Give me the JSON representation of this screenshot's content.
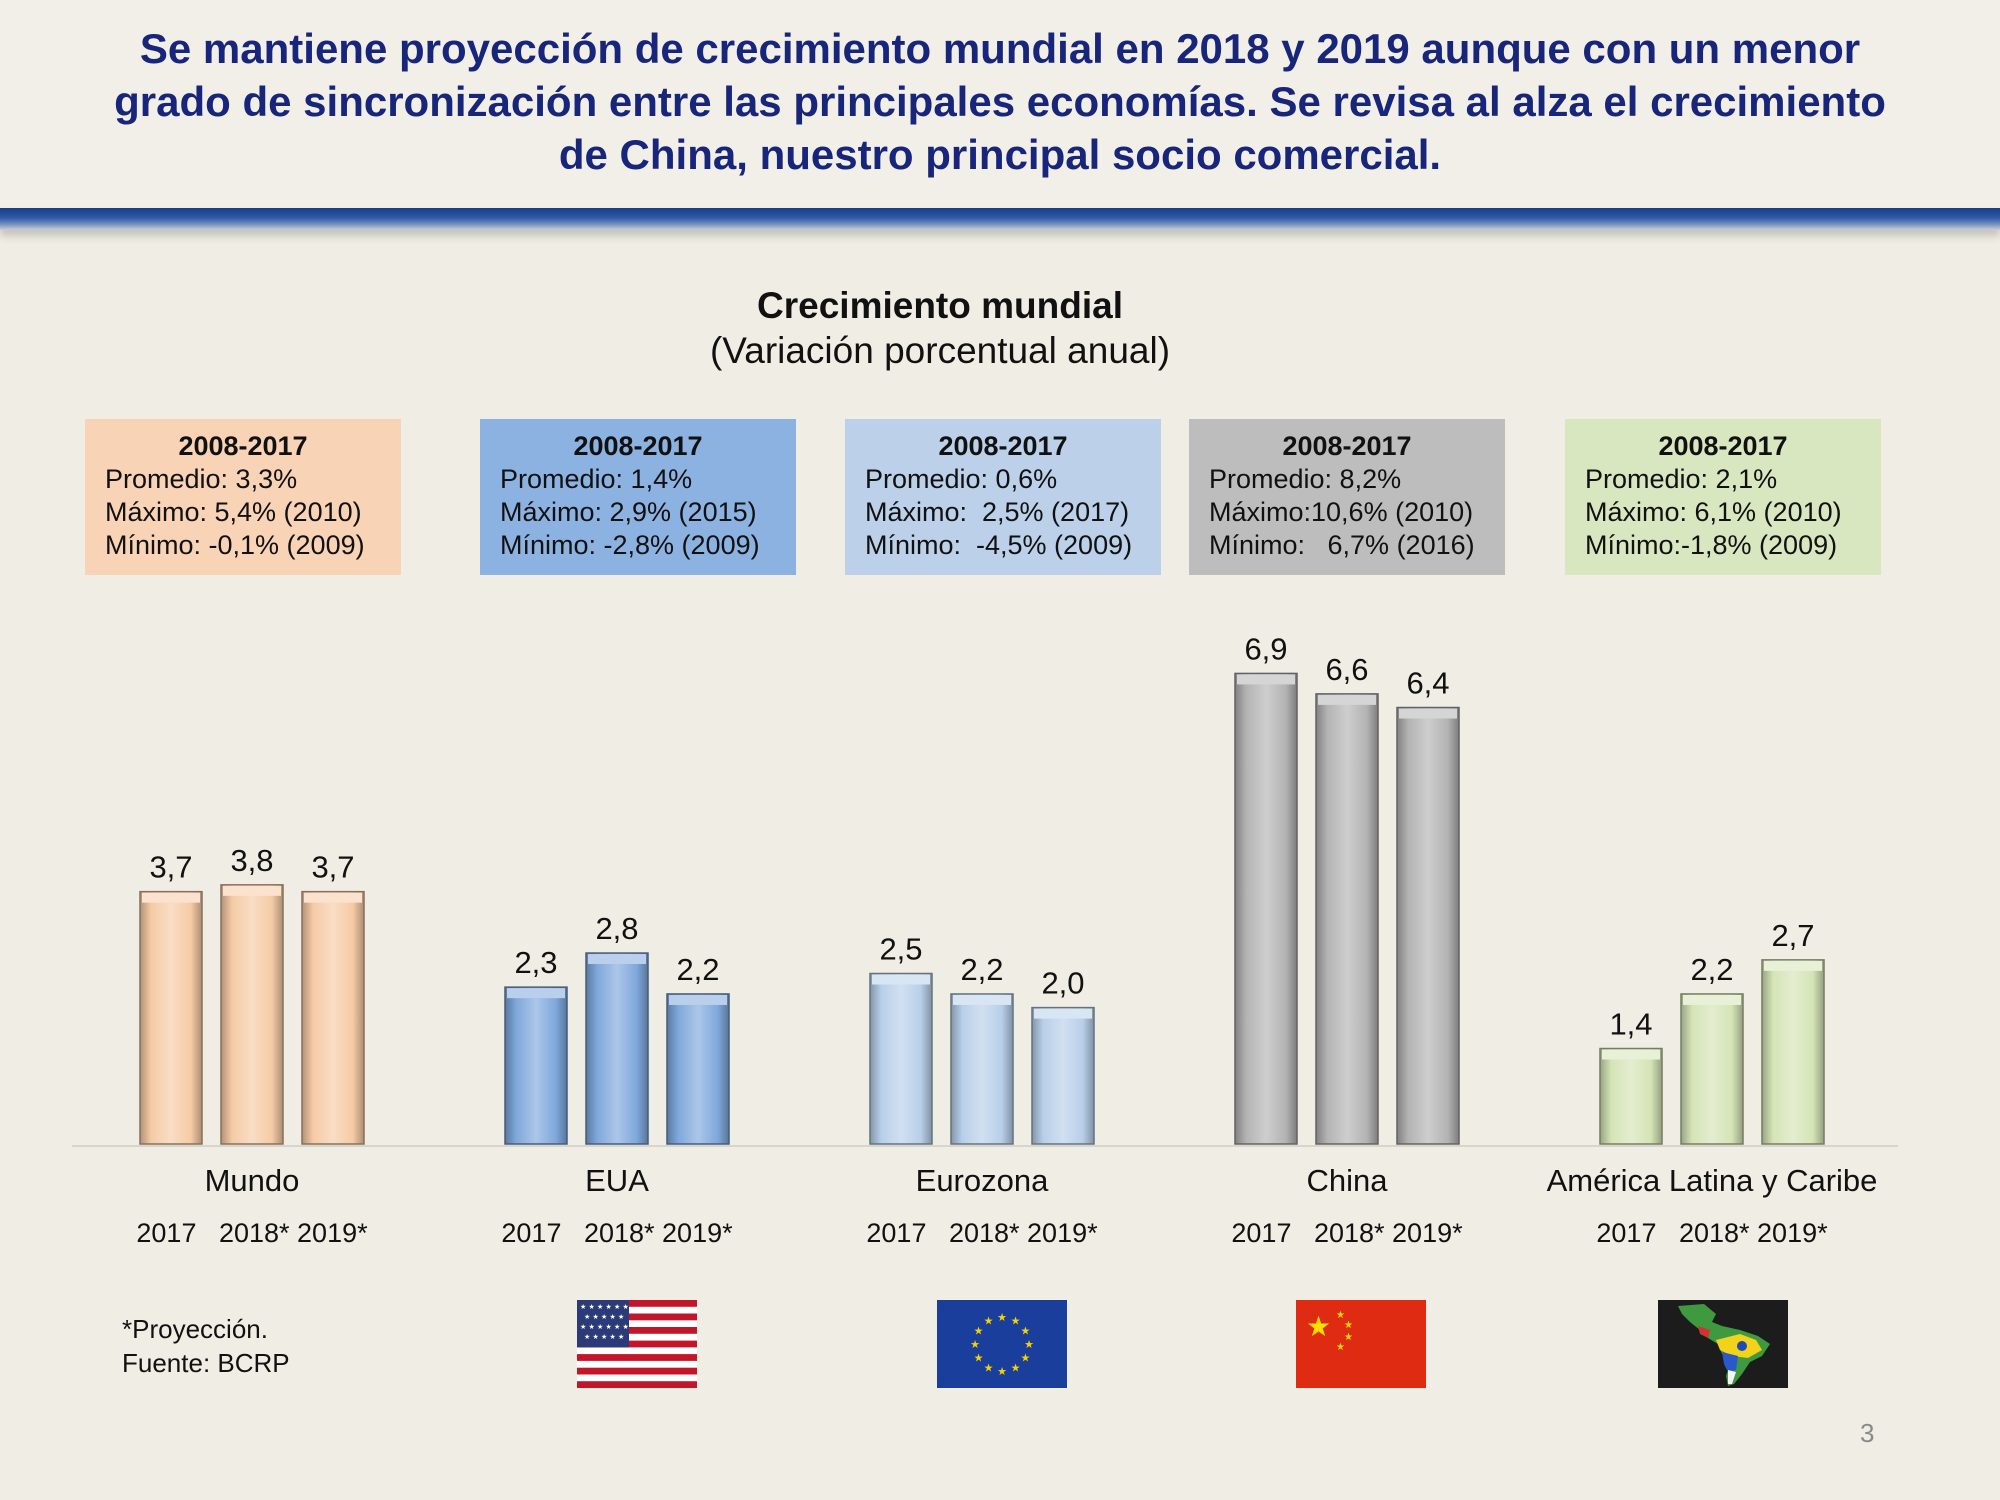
{
  "headline": "Se mantiene proyección de crecimiento mundial en 2018 y 2019 aunque con un menor\ngrado de sincronización entre las principales economías. Se revisa al alza el crecimiento\nde China, nuestro principal socio comercial.",
  "chart_data": {
    "type": "bar",
    "title": "Crecimiento mundial",
    "subtitle": "(Variación porcentual anual)",
    "categories": [
      "Mundo",
      "EUA",
      "Eurozona",
      "China",
      "América Latina y Caribe"
    ],
    "periods": [
      "2017",
      "2018*",
      "2019*"
    ],
    "years_label": "2017   2018* 2019*",
    "values": [
      [
        "3,7",
        "3,8",
        "3,7"
      ],
      [
        "2,3",
        "2,8",
        "2,2"
      ],
      [
        "2,5",
        "2,2",
        "2,0"
      ],
      [
        "6,9",
        "6,6",
        "6,4"
      ],
      [
        "1,4",
        "2,2",
        "2,7"
      ]
    ],
    "numeric_values": [
      [
        3.7,
        3.8,
        3.7
      ],
      [
        2.3,
        2.8,
        2.2
      ],
      [
        2.5,
        2.2,
        2.0
      ],
      [
        6.9,
        6.6,
        6.4
      ],
      [
        1.4,
        2.2,
        2.7
      ]
    ],
    "ylim": [
      0,
      7.5
    ],
    "grid": false,
    "colors": [
      "#f6cba6",
      "#7fa8dc",
      "#b8cfe9",
      "#b3b3b3",
      "#d5e4b6"
    ]
  },
  "stat_boxes": [
    {
      "heading": "2008-2017",
      "lines": [
        "Promedio: 3,3%",
        "Máximo: 5,4% (2010)",
        "Mínimo: -0,1% (2009)"
      ],
      "color": "#f9d3b5"
    },
    {
      "heading": "2008-2017",
      "lines": [
        "Promedio: 1,4%",
        "Máximo: 2,9% (2015)",
        "Mínimo: -2,8% (2009)"
      ],
      "color": "#8cb2e2"
    },
    {
      "heading": "2008-2017",
      "lines": [
        "Promedio: 0,6%",
        "Máximo:  2,5% (2017)",
        "Mínimo:  -4,5% (2009)"
      ],
      "color": "#bcd0ea"
    },
    {
      "heading": "2008-2017",
      "lines": [
        "Promedio: 8,2%",
        "Máximo:10,6% (2010)",
        "Mínimo:   6,7% (2016)"
      ],
      "color": "#bdbdbd"
    },
    {
      "heading": "2008-2017",
      "lines": [
        "Promedio: 2,1%",
        "Máximo: 6,1% (2010)",
        "Mínimo:-1,8% (2009)"
      ],
      "color": "#d9e7c0"
    }
  ],
  "footnote": {
    "projection": "*Proyección.",
    "source": "Fuente: BCRP"
  },
  "flags": [
    "us-flag",
    "eu-flag",
    "china-flag",
    "latin-america-map"
  ],
  "page_number": "3"
}
